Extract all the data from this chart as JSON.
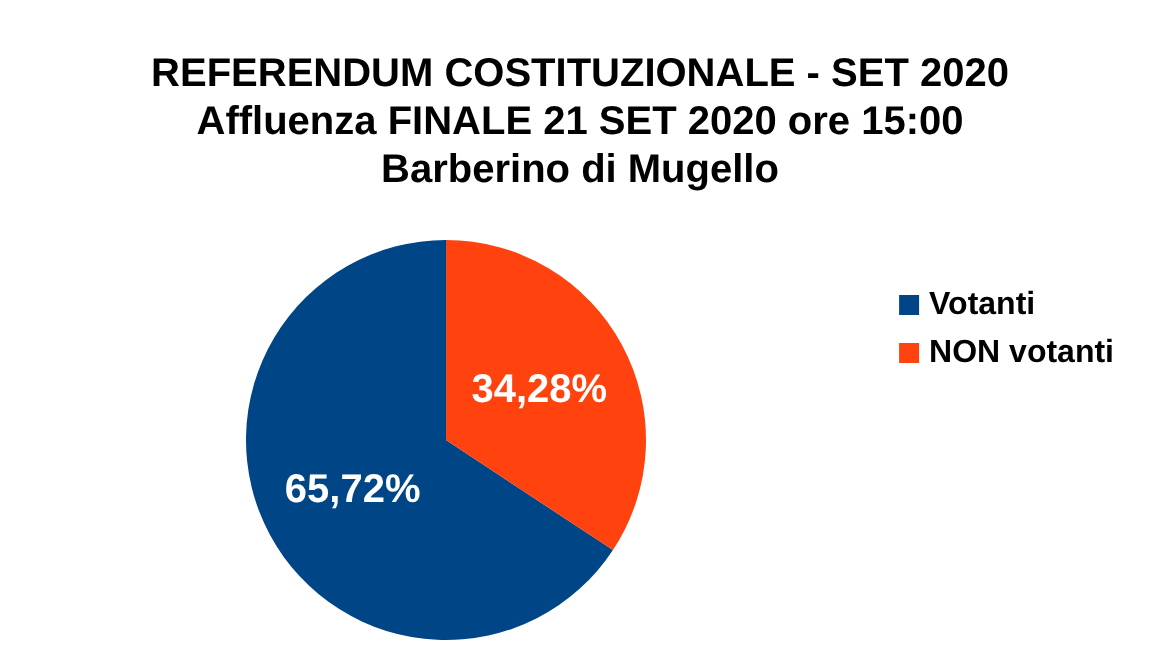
{
  "chart_data": {
    "type": "pie",
    "title": "REFERENDUM COSTITUZIONALE - SET 2020\nAffluenza FINALE 21 SET 2020 ore 15:00\nBarberino di Mugello",
    "categories": [
      "Votanti",
      "NON votanti"
    ],
    "values": [
      65.72,
      34.28
    ],
    "value_labels": [
      "65,72%",
      "34,28%"
    ],
    "colors": [
      "#004586",
      "#ff420e"
    ],
    "legend": "right"
  }
}
